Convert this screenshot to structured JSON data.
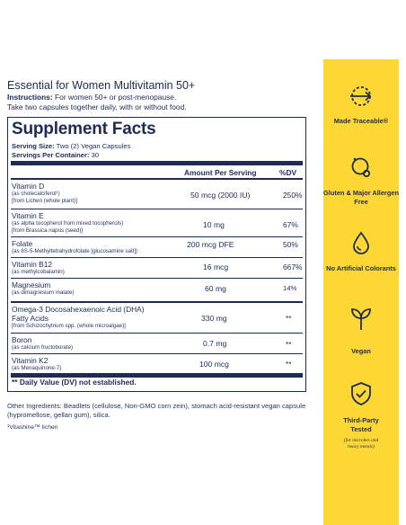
{
  "product": {
    "title": "Essential for Women Multivitamin 50+",
    "instructions_label": "Instructions:",
    "instructions_text": " For women 50+ or post-menopause.",
    "instructions_line2": "Take two capsules together daily, with or without food."
  },
  "facts": {
    "title": "Supplement Facts",
    "serving_size_label": "Serving Size:",
    "serving_size_value": " Two (2) Vegan Capsules",
    "servings_per_container_label": "Servings Per Container:",
    "servings_per_container_value": " 30",
    "header_amount": "Amount Per Serving",
    "header_dv": "%DV",
    "rows": [
      {
        "name": "Vitamin D",
        "sub1": "(as cholecalciferol¹)",
        "sub2": "[from Lichen (whole plant)]",
        "amount": "50 mcg (2000 IU)",
        "dv": "250%"
      },
      {
        "name": "Vitamin E",
        "sub1": "(as alpha tocopherol from mixed tocopherols)",
        "sub2": "[from Brassica napus (seed)]",
        "amount": "10 mg",
        "dv": "67%"
      },
      {
        "name": "Folate",
        "sub1": "(as 6S-5-Methyltetrahydrofolate [glucosamine salt])",
        "sub2": "",
        "amount": "200 mcg DFE",
        "dv": "50%"
      },
      {
        "name": "Vitamin B12",
        "sub1": "(as methylcobalamin)",
        "sub2": "",
        "amount": "16 mcg",
        "dv": "667%"
      },
      {
        "name": "Magnesium",
        "sub1": "(as dimagnesium malate)",
        "sub2": "",
        "amount": "60 mg",
        "dv": "14%"
      },
      {
        "name": "Omega-3 Docosahexaenoic Acid (DHA)",
        "name2": "Fatty Acids",
        "sub1": "[from Schizochytrium spp. (whole microalgae)]",
        "sub2": "",
        "amount": "330 mg",
        "dv": "**"
      },
      {
        "name": "Boron",
        "sub1": "(as calcium fructoborate)",
        "sub2": "",
        "amount": "0.7 mg",
        "dv": "**"
      },
      {
        "name": "Vitamin K2",
        "sub1": "(as Menaquinone-7)",
        "sub2": "",
        "amount": "100 mcg",
        "dv": "**"
      }
    ],
    "footnote": "** Daily Value (DV) not established."
  },
  "other_ingredients": "Other Ingredients: Beadlets (cellulose, Non-GMO corn zein), stomach acid-resistant vegan capsule (hypromellose, gellan gum), silica.",
  "vitashine_note": "¹Vitashine™ lichen",
  "badges": [
    {
      "label": "Made Traceable®",
      "icon": "traceable-arrow-icon"
    },
    {
      "label": "Gluten & Major Allergen Free",
      "icon": "allergen-free-icon"
    },
    {
      "label": "No Artificial Colorants",
      "icon": "droplet-icon"
    },
    {
      "label": "Vegan",
      "icon": "sprout-icon"
    },
    {
      "label": "Third-Party Tested",
      "note": "(for microbes and heavy metals)",
      "icon": "shield-check-icon"
    }
  ],
  "colors": {
    "navy": "#1f2a55",
    "yellow": "#fdd834"
  }
}
